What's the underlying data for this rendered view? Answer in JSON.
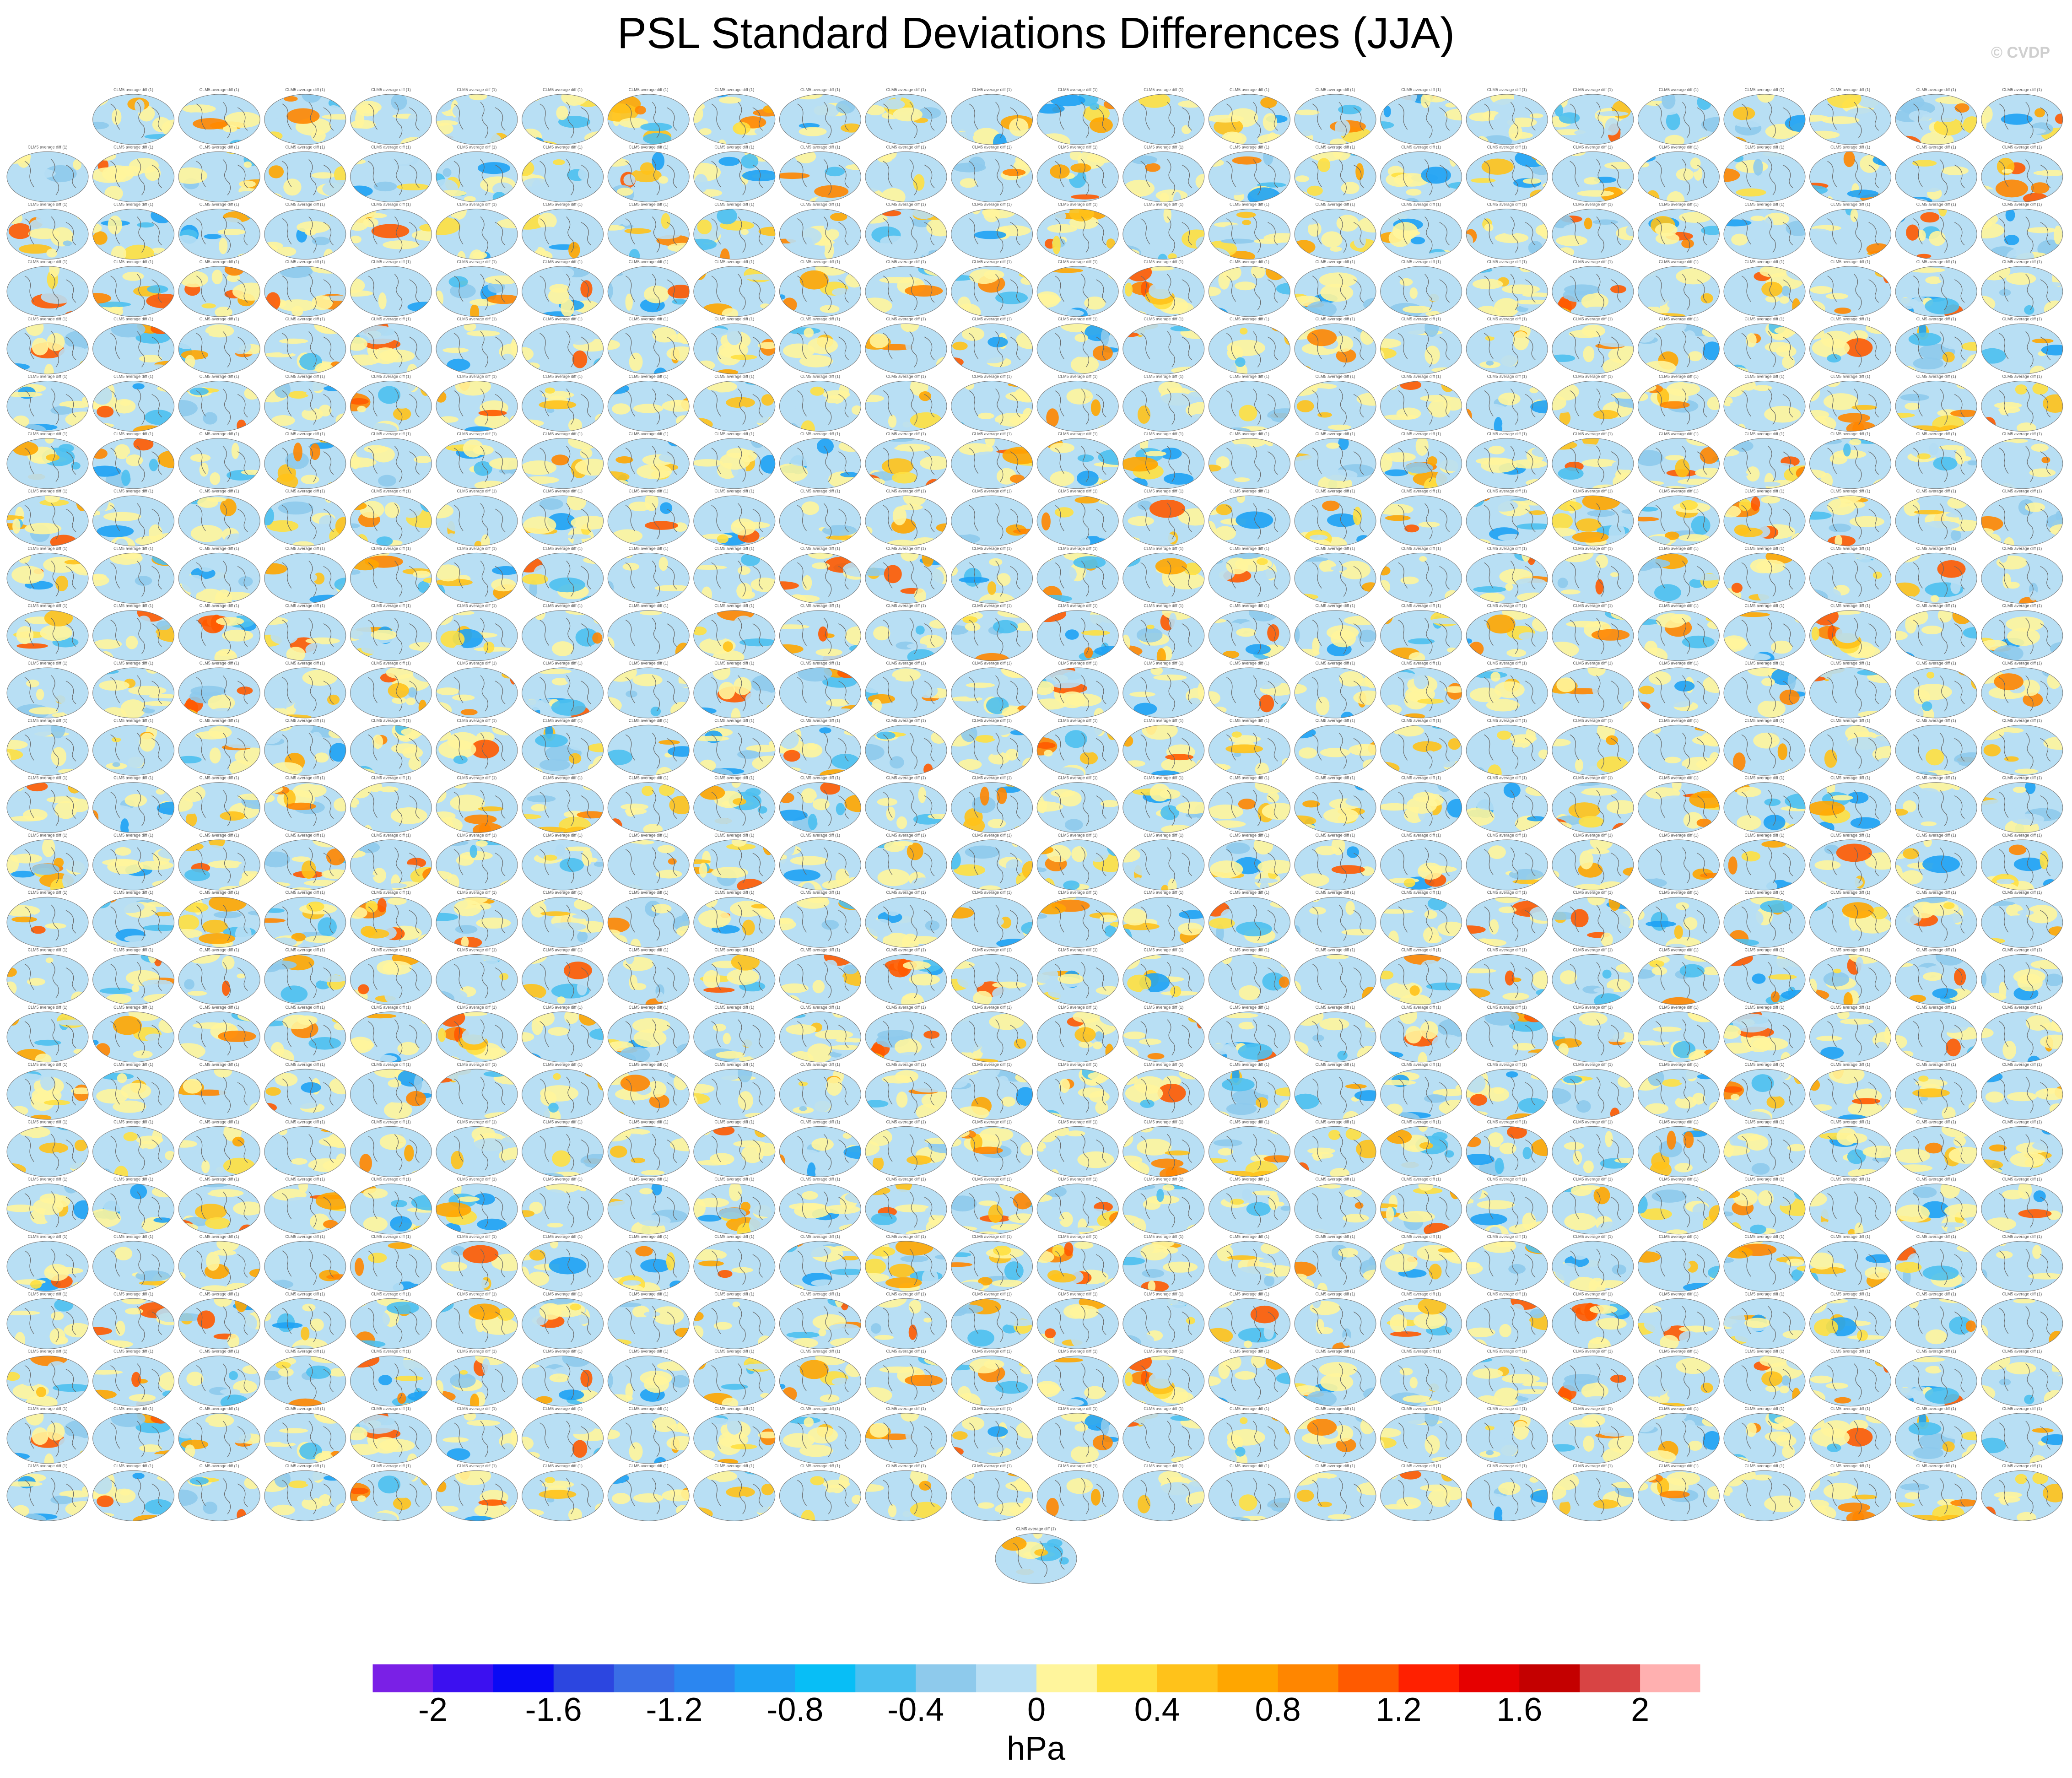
{
  "title": "PSL Standard Deviations Differences (JJA)",
  "credit": "© CVDP",
  "panel_title": "CLM5 average diff (1)",
  "chart_data": {
    "type": "heatmap",
    "title": "PSL Standard Deviations Differences (JJA)",
    "description_grid": {
      "rows": 25,
      "cols": 24,
      "first_row_cols": 23,
      "trailing_single_panel": true
    },
    "panel_count": 600,
    "colorbar": {
      "units": "hPa",
      "tick_labels": [
        "-2",
        "-1.6",
        "-1.2",
        "-0.8",
        "-0.4",
        "0",
        "0.4",
        "0.8",
        "1.2",
        "1.6",
        "2"
      ],
      "levels": [
        -2.2,
        -2.0,
        -1.8,
        -1.6,
        -1.4,
        -1.2,
        -1.0,
        -0.8,
        -0.6,
        -0.4,
        -0.2,
        0,
        0.2,
        0.4,
        0.6,
        0.8,
        1.0,
        1.2,
        1.4,
        1.6,
        1.8,
        2.0,
        2.2
      ],
      "colors": [
        "#7a20e6",
        "#3c10f0",
        "#0a0af5",
        "#2c46e0",
        "#3a6ee6",
        "#2b86f0",
        "#1ea2f4",
        "#08bef6",
        "#4cc0f0",
        "#8ecaec",
        "#b8dff4",
        "#fff59c",
        "#ffe040",
        "#ffc21a",
        "#ffa600",
        "#ff8600",
        "#ff5a00",
        "#ff2000",
        "#e60000",
        "#c40000",
        "#d84444",
        "#ffb0b0"
      ]
    },
    "dominant_values": "mostly between -0.4 and 0.4 hPa"
  }
}
